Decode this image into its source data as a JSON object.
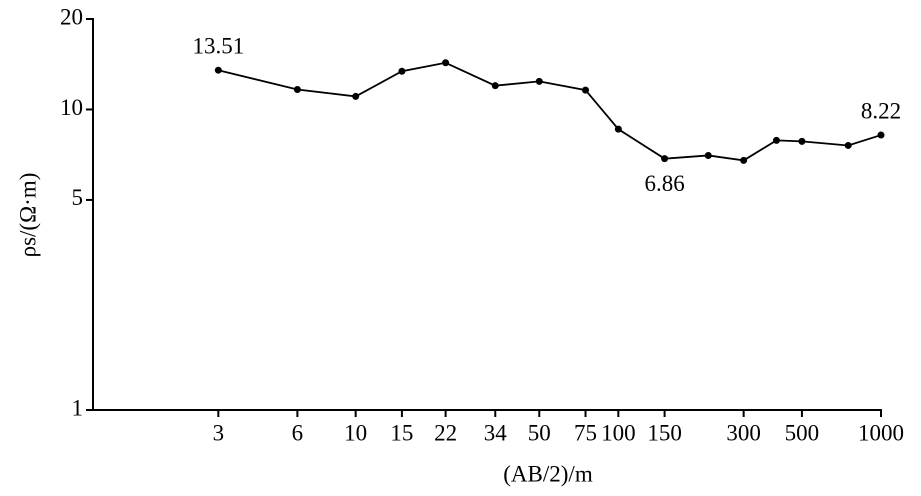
{
  "chart_data": {
    "type": "line",
    "x_label": "(AB/2)/m",
    "y_label": "ρs/(Ω·m)",
    "x": [
      3,
      6,
      10,
      15,
      22,
      34,
      50,
      75,
      100,
      150,
      220,
      300,
      400,
      500,
      750,
      1000
    ],
    "series": [
      {
        "color": "#000000",
        "values": [
          13.51,
          11.65,
          11.05,
          13.4,
          14.3,
          12.0,
          12.4,
          11.6,
          8.6,
          6.86,
          7.03,
          6.77,
          7.89,
          7.83,
          7.59,
          8.22
        ],
        "value_labels": [
          "13.51",
          null,
          null,
          null,
          null,
          null,
          null,
          null,
          null,
          "6.86",
          null,
          null,
          null,
          null,
          null,
          "8.22"
        ]
      }
    ],
    "xlim": [
      1,
      1000
    ],
    "xticks": [
      3,
      6,
      10,
      15,
      22,
      34,
      50,
      75,
      100,
      150,
      300,
      500,
      1000
    ],
    "xscale": "log",
    "ylim": [
      1,
      20
    ],
    "yticks": [
      1,
      5,
      10,
      20
    ],
    "yscale": "log"
  }
}
